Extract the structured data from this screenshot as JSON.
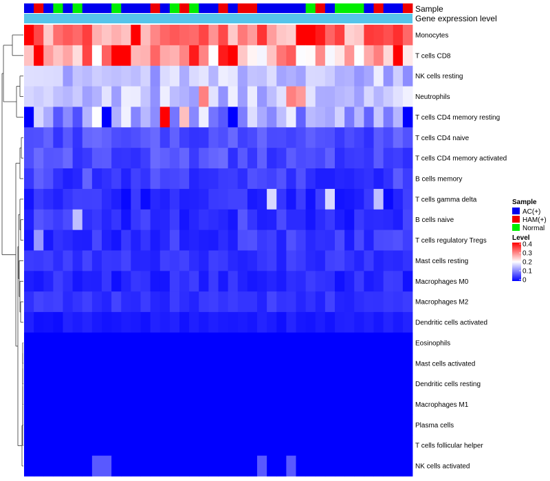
{
  "chart_data": {
    "type": "heatmap",
    "annotation_labels": {
      "sample": "Sample",
      "gene_expression": "Gene expression level"
    },
    "sample_groups": [
      "AC(+)",
      "HAM(+)",
      "AC(+)",
      "Normal",
      "AC(+)",
      "Normal",
      "AC(+)",
      "AC(+)",
      "AC(+)",
      "Normal",
      "AC(+)",
      "AC(+)",
      "AC(+)",
      "HAM(+)",
      "AC(+)",
      "Normal",
      "HAM(+)",
      "Normal",
      "AC(+)",
      "AC(+)",
      "HAM(+)",
      "AC(+)",
      "HAM(+)",
      "HAM(+)",
      "AC(+)",
      "AC(+)",
      "AC(+)",
      "AC(+)",
      "AC(+)",
      "Normal",
      "HAM(+)",
      "AC(+)",
      "Normal",
      "Normal",
      "Normal",
      "AC(+)",
      "HAM(+)",
      "AC(+)",
      "AC(+)",
      "HAM(+)"
    ],
    "group_colors": {
      "AC(+)": "#0000ee",
      "HAM(+)": "#ee0000",
      "Normal": "#00ee00"
    },
    "gene_expression_color": "#56c4ea",
    "rows": [
      "Monocytes",
      "T cells CD8",
      "NK cells resting",
      "Neutrophils",
      "T cells CD4 memory resting",
      "T cells CD4 naive",
      "T cells CD4 memory activated",
      "B cells memory",
      "T cells gamma delta",
      "B cells naive",
      "T cells regulatory  Tregs",
      "Mast cells resting",
      "Macrophages M0",
      "Macrophages M2",
      "Dendritic cells activated",
      "Eosinophils",
      "Mast cells activated",
      "Dendritic cells resting",
      "Macrophages M1",
      "Plasma cells",
      "T cells follicular helper",
      "NK cells activated"
    ],
    "row_means": [
      0.3,
      0.28,
      0.15,
      0.15,
      0.13,
      0.06,
      0.06,
      0.05,
      0.03,
      0.04,
      0.04,
      0.04,
      0.03,
      0.04,
      0.02,
      0.0,
      0.0,
      0.0,
      0.0,
      0.0,
      0.0,
      0.0
    ],
    "row_spread": [
      0.07,
      0.09,
      0.04,
      0.04,
      0.07,
      0.025,
      0.025,
      0.03,
      0.025,
      0.03,
      0.025,
      0.015,
      0.02,
      0.015,
      0.01,
      0.0,
      0.0,
      0.0,
      0.0,
      0.0,
      0.0,
      0.0
    ],
    "overrides": [
      [
        0,
        0,
        0.4
      ],
      [
        0,
        11,
        0.4
      ],
      [
        0,
        28,
        0.4
      ],
      [
        0,
        29,
        0.4
      ],
      [
        0,
        30,
        0.38
      ],
      [
        0,
        4,
        0.33
      ],
      [
        0,
        14,
        0.32
      ],
      [
        1,
        1,
        0.4
      ],
      [
        1,
        9,
        0.4
      ],
      [
        1,
        10,
        0.4
      ],
      [
        1,
        21,
        0.4
      ],
      [
        1,
        17,
        0.38
      ],
      [
        1,
        20,
        0.38
      ],
      [
        1,
        38,
        0.4
      ],
      [
        1,
        7,
        0.2
      ],
      [
        1,
        32,
        0.22
      ],
      [
        3,
        27,
        0.3
      ],
      [
        3,
        28,
        0.28
      ],
      [
        3,
        18,
        0.3
      ],
      [
        4,
        0,
        0.0
      ],
      [
        4,
        14,
        0.4
      ],
      [
        4,
        16,
        0.25
      ],
      [
        4,
        8,
        0.0
      ],
      [
        4,
        21,
        0.0
      ],
      [
        4,
        39,
        0.0
      ],
      [
        8,
        25,
        0.17
      ],
      [
        8,
        31,
        0.17
      ],
      [
        8,
        36,
        0.15
      ],
      [
        9,
        5,
        0.15
      ],
      [
        10,
        1,
        0.12
      ],
      [
        21,
        7,
        0.07
      ],
      [
        21,
        8,
        0.07
      ],
      [
        21,
        24,
        0.07
      ],
      [
        21,
        27,
        0.07
      ],
      [
        15,
        0,
        0.0
      ],
      [
        16,
        0,
        0.0
      ],
      [
        17,
        0,
        0.0
      ],
      [
        18,
        0,
        0.0
      ],
      [
        19,
        0,
        0.0
      ],
      [
        20,
        0,
        0.0
      ]
    ],
    "scale": {
      "min": 0,
      "max": 0.4,
      "low_color": "#0000ff",
      "mid_color": "#ffffff",
      "high_color": "#ff0000"
    },
    "legend": {
      "sample_title": "Sample",
      "sample_items": [
        {
          "label": "AC(+)",
          "color": "#0000ee"
        },
        {
          "label": "HAM(+)",
          "color": "#ee0000"
        },
        {
          "label": "Normal",
          "color": "#00ee00"
        }
      ],
      "level_title": "Level",
      "level_ticks": [
        "0.4",
        "0.3",
        "0.2",
        "0.1",
        "0"
      ]
    }
  }
}
